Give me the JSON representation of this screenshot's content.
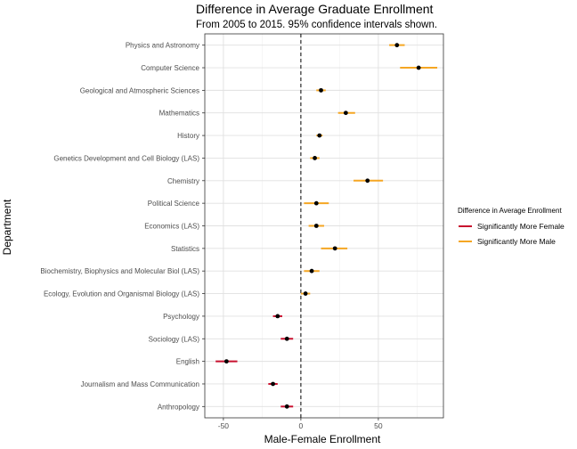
{
  "colors": {
    "female": "#c8102e",
    "male": "#f5a623",
    "point": "#000000",
    "grid_major": "#e0e0e0",
    "grid_minor": "#f0f0f0",
    "axis_text": "#4d4d4d",
    "title": "#000000"
  },
  "chart_data": {
    "type": "scatter",
    "title": "Difference in Average Graduate Enrollment",
    "subtitle": "From 2005 to 2015. 95% confidence intervals shown.",
    "xlabel": "Male-Female Enrollment",
    "ylabel": "Department",
    "xlim": [
      -62,
      92
    ],
    "xticks": [
      -50,
      0,
      50
    ],
    "xtick_labels": [
      "-50",
      "0",
      "50"
    ],
    "reference_line": {
      "x": 0,
      "style": "dashed"
    },
    "grid": true,
    "legend": {
      "title": "Difference in Average Enrollment",
      "position": "right",
      "entries": [
        {
          "label": "Significantly More Female",
          "color_key": "female"
        },
        {
          "label": "Significantly More Male",
          "color_key": "male"
        }
      ]
    },
    "categories": [
      "Physics and Astronomy",
      "Computer Science",
      "Geological and Atmospheric Sciences",
      "Mathematics",
      "History",
      "Genetics Development and Cell Biology (LAS)",
      "Chemistry",
      "Political Science",
      "Economics (LAS)",
      "Statistics",
      "Biochemistry, Biophysics and Molecular Biol (LAS)",
      "Ecology, Evolution and Organismal Biology (LAS)",
      "Psychology",
      "Sociology (LAS)",
      "English",
      "Journalism and Mass Communication",
      "Anthropology"
    ],
    "points": [
      {
        "category": "Physics and Astronomy",
        "estimate": 62,
        "lower": 57,
        "upper": 67,
        "group": "male"
      },
      {
        "category": "Computer Science",
        "estimate": 76,
        "lower": 64,
        "upper": 88,
        "group": "male"
      },
      {
        "category": "Geological and Atmospheric Sciences",
        "estimate": 13,
        "lower": 10,
        "upper": 16,
        "group": "male"
      },
      {
        "category": "Mathematics",
        "estimate": 29,
        "lower": 24,
        "upper": 35,
        "group": "male"
      },
      {
        "category": "History",
        "estimate": 12,
        "lower": 10,
        "upper": 14,
        "group": "male"
      },
      {
        "category": "Genetics Development and Cell Biology (LAS)",
        "estimate": 9,
        "lower": 6,
        "upper": 12,
        "group": "male"
      },
      {
        "category": "Chemistry",
        "estimate": 43,
        "lower": 34,
        "upper": 53,
        "group": "male"
      },
      {
        "category": "Political Science",
        "estimate": 10,
        "lower": 2,
        "upper": 18,
        "group": "male"
      },
      {
        "category": "Economics (LAS)",
        "estimate": 10,
        "lower": 5,
        "upper": 15,
        "group": "male"
      },
      {
        "category": "Statistics",
        "estimate": 22,
        "lower": 13,
        "upper": 30,
        "group": "male"
      },
      {
        "category": "Biochemistry, Biophysics and Molecular Biol (LAS)",
        "estimate": 7,
        "lower": 2,
        "upper": 12,
        "group": "male"
      },
      {
        "category": "Ecology, Evolution and Organismal Biology (LAS)",
        "estimate": 3,
        "lower": 0,
        "upper": 6,
        "group": "male"
      },
      {
        "category": "Psychology",
        "estimate": -15,
        "lower": -18,
        "upper": -12,
        "group": "female"
      },
      {
        "category": "Sociology (LAS)",
        "estimate": -9,
        "lower": -13,
        "upper": -5,
        "group": "female"
      },
      {
        "category": "English",
        "estimate": -48,
        "lower": -55,
        "upper": -41,
        "group": "female"
      },
      {
        "category": "Journalism and Mass Communication",
        "estimate": -18,
        "lower": -21,
        "upper": -15,
        "group": "female"
      },
      {
        "category": "Anthropology",
        "estimate": -9,
        "lower": -13,
        "upper": -5,
        "group": "female"
      }
    ]
  }
}
